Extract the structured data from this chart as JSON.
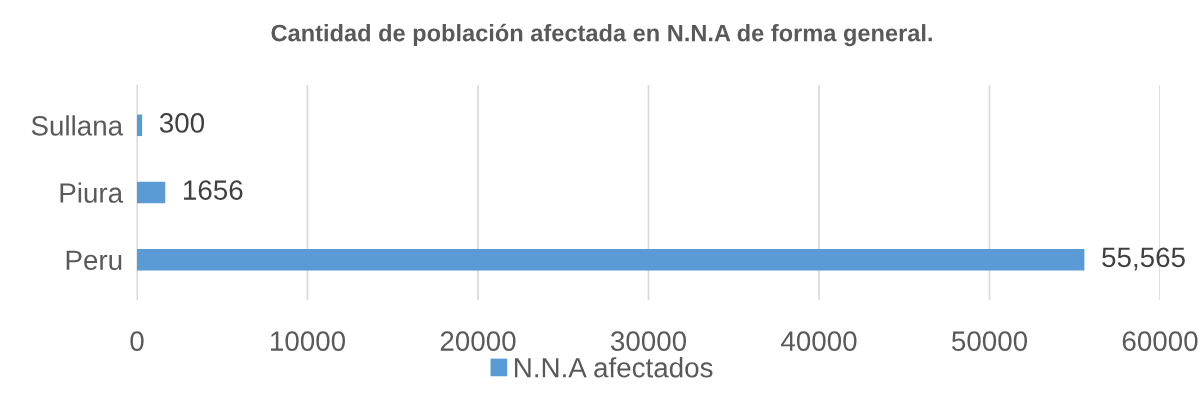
{
  "chart_data": {
    "type": "bar",
    "orientation": "horizontal",
    "title": "Cantidad de población afectada en N.N.A de forma general.",
    "categories": [
      "Sullana",
      "Piura",
      "Peru"
    ],
    "series": [
      {
        "name": "N.N.A afectados",
        "color": "#5b9bd5",
        "values": [
          300,
          1656,
          55565
        ],
        "value_labels": [
          "300",
          "1656",
          "55,565"
        ]
      }
    ],
    "xlim": [
      0,
      60000
    ],
    "xticks": [
      0,
      10000,
      20000,
      30000,
      40000,
      50000,
      60000
    ],
    "grid": "x",
    "legend": "bottom"
  }
}
